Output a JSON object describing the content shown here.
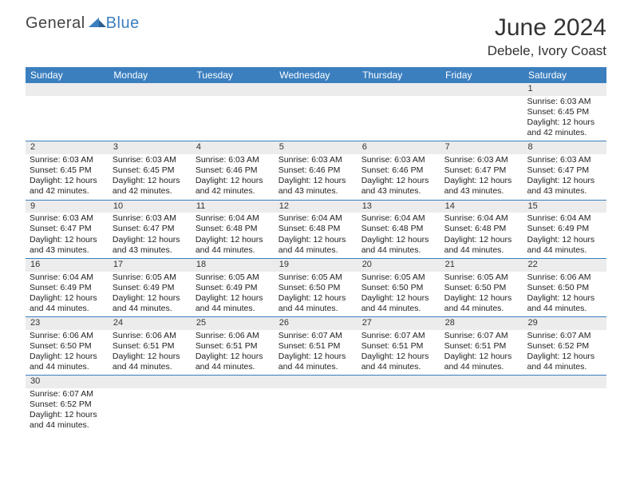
{
  "logo": {
    "general": "General",
    "blue": "Blue"
  },
  "title": "June 2024",
  "location": "Debele, Ivory Coast",
  "headers": [
    "Sunday",
    "Monday",
    "Tuesday",
    "Wednesday",
    "Thursday",
    "Friday",
    "Saturday"
  ],
  "colors": {
    "header_bg": "#3b7fbf",
    "header_text": "#ffffff",
    "daynum_bg": "#ececec",
    "row_divider": "#3b7fbf",
    "text": "#222222",
    "logo_blue": "#3b7fbf"
  },
  "fonts": {
    "title_size": 30,
    "location_size": 17,
    "header_size": 12,
    "daynum_size": 11,
    "cell_size": 10.5
  },
  "weeks": [
    [
      null,
      null,
      null,
      null,
      null,
      null,
      {
        "n": "1",
        "sr": "Sunrise: 6:03 AM",
        "ss": "Sunset: 6:45 PM",
        "dl1": "Daylight: 12 hours",
        "dl2": "and 42 minutes."
      }
    ],
    [
      {
        "n": "2",
        "sr": "Sunrise: 6:03 AM",
        "ss": "Sunset: 6:45 PM",
        "dl1": "Daylight: 12 hours",
        "dl2": "and 42 minutes."
      },
      {
        "n": "3",
        "sr": "Sunrise: 6:03 AM",
        "ss": "Sunset: 6:45 PM",
        "dl1": "Daylight: 12 hours",
        "dl2": "and 42 minutes."
      },
      {
        "n": "4",
        "sr": "Sunrise: 6:03 AM",
        "ss": "Sunset: 6:46 PM",
        "dl1": "Daylight: 12 hours",
        "dl2": "and 42 minutes."
      },
      {
        "n": "5",
        "sr": "Sunrise: 6:03 AM",
        "ss": "Sunset: 6:46 PM",
        "dl1": "Daylight: 12 hours",
        "dl2": "and 43 minutes."
      },
      {
        "n": "6",
        "sr": "Sunrise: 6:03 AM",
        "ss": "Sunset: 6:46 PM",
        "dl1": "Daylight: 12 hours",
        "dl2": "and 43 minutes."
      },
      {
        "n": "7",
        "sr": "Sunrise: 6:03 AM",
        "ss": "Sunset: 6:47 PM",
        "dl1": "Daylight: 12 hours",
        "dl2": "and 43 minutes."
      },
      {
        "n": "8",
        "sr": "Sunrise: 6:03 AM",
        "ss": "Sunset: 6:47 PM",
        "dl1": "Daylight: 12 hours",
        "dl2": "and 43 minutes."
      }
    ],
    [
      {
        "n": "9",
        "sr": "Sunrise: 6:03 AM",
        "ss": "Sunset: 6:47 PM",
        "dl1": "Daylight: 12 hours",
        "dl2": "and 43 minutes."
      },
      {
        "n": "10",
        "sr": "Sunrise: 6:03 AM",
        "ss": "Sunset: 6:47 PM",
        "dl1": "Daylight: 12 hours",
        "dl2": "and 43 minutes."
      },
      {
        "n": "11",
        "sr": "Sunrise: 6:04 AM",
        "ss": "Sunset: 6:48 PM",
        "dl1": "Daylight: 12 hours",
        "dl2": "and 44 minutes."
      },
      {
        "n": "12",
        "sr": "Sunrise: 6:04 AM",
        "ss": "Sunset: 6:48 PM",
        "dl1": "Daylight: 12 hours",
        "dl2": "and 44 minutes."
      },
      {
        "n": "13",
        "sr": "Sunrise: 6:04 AM",
        "ss": "Sunset: 6:48 PM",
        "dl1": "Daylight: 12 hours",
        "dl2": "and 44 minutes."
      },
      {
        "n": "14",
        "sr": "Sunrise: 6:04 AM",
        "ss": "Sunset: 6:48 PM",
        "dl1": "Daylight: 12 hours",
        "dl2": "and 44 minutes."
      },
      {
        "n": "15",
        "sr": "Sunrise: 6:04 AM",
        "ss": "Sunset: 6:49 PM",
        "dl1": "Daylight: 12 hours",
        "dl2": "and 44 minutes."
      }
    ],
    [
      {
        "n": "16",
        "sr": "Sunrise: 6:04 AM",
        "ss": "Sunset: 6:49 PM",
        "dl1": "Daylight: 12 hours",
        "dl2": "and 44 minutes."
      },
      {
        "n": "17",
        "sr": "Sunrise: 6:05 AM",
        "ss": "Sunset: 6:49 PM",
        "dl1": "Daylight: 12 hours",
        "dl2": "and 44 minutes."
      },
      {
        "n": "18",
        "sr": "Sunrise: 6:05 AM",
        "ss": "Sunset: 6:49 PM",
        "dl1": "Daylight: 12 hours",
        "dl2": "and 44 minutes."
      },
      {
        "n": "19",
        "sr": "Sunrise: 6:05 AM",
        "ss": "Sunset: 6:50 PM",
        "dl1": "Daylight: 12 hours",
        "dl2": "and 44 minutes."
      },
      {
        "n": "20",
        "sr": "Sunrise: 6:05 AM",
        "ss": "Sunset: 6:50 PM",
        "dl1": "Daylight: 12 hours",
        "dl2": "and 44 minutes."
      },
      {
        "n": "21",
        "sr": "Sunrise: 6:05 AM",
        "ss": "Sunset: 6:50 PM",
        "dl1": "Daylight: 12 hours",
        "dl2": "and 44 minutes."
      },
      {
        "n": "22",
        "sr": "Sunrise: 6:06 AM",
        "ss": "Sunset: 6:50 PM",
        "dl1": "Daylight: 12 hours",
        "dl2": "and 44 minutes."
      }
    ],
    [
      {
        "n": "23",
        "sr": "Sunrise: 6:06 AM",
        "ss": "Sunset: 6:50 PM",
        "dl1": "Daylight: 12 hours",
        "dl2": "and 44 minutes."
      },
      {
        "n": "24",
        "sr": "Sunrise: 6:06 AM",
        "ss": "Sunset: 6:51 PM",
        "dl1": "Daylight: 12 hours",
        "dl2": "and 44 minutes."
      },
      {
        "n": "25",
        "sr": "Sunrise: 6:06 AM",
        "ss": "Sunset: 6:51 PM",
        "dl1": "Daylight: 12 hours",
        "dl2": "and 44 minutes."
      },
      {
        "n": "26",
        "sr": "Sunrise: 6:07 AM",
        "ss": "Sunset: 6:51 PM",
        "dl1": "Daylight: 12 hours",
        "dl2": "and 44 minutes."
      },
      {
        "n": "27",
        "sr": "Sunrise: 6:07 AM",
        "ss": "Sunset: 6:51 PM",
        "dl1": "Daylight: 12 hours",
        "dl2": "and 44 minutes."
      },
      {
        "n": "28",
        "sr": "Sunrise: 6:07 AM",
        "ss": "Sunset: 6:51 PM",
        "dl1": "Daylight: 12 hours",
        "dl2": "and 44 minutes."
      },
      {
        "n": "29",
        "sr": "Sunrise: 6:07 AM",
        "ss": "Sunset: 6:52 PM",
        "dl1": "Daylight: 12 hours",
        "dl2": "and 44 minutes."
      }
    ],
    [
      {
        "n": "30",
        "sr": "Sunrise: 6:07 AM",
        "ss": "Sunset: 6:52 PM",
        "dl1": "Daylight: 12 hours",
        "dl2": "and 44 minutes."
      },
      null,
      null,
      null,
      null,
      null,
      null
    ]
  ]
}
